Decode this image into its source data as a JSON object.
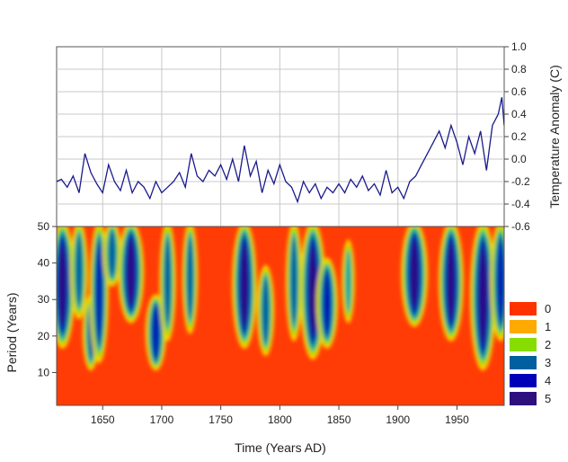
{
  "chart_data": [
    {
      "type": "line",
      "name": "temperature-anomaly",
      "ylabel": "Temperature Anomaly (C)",
      "xlim": [
        1611,
        1990
      ],
      "ylim": [
        -0.6,
        1.0
      ],
      "y_ticks": [
        "1.0",
        "0.8",
        "0.6",
        "0.4",
        "0.2",
        "0.0",
        "-0.2",
        "-0.4",
        "-0.6"
      ],
      "y_axis_side": "right",
      "grid": true,
      "color": "#1a1a8c",
      "x": [
        1611,
        1615,
        1620,
        1625,
        1630,
        1635,
        1640,
        1645,
        1650,
        1655,
        1660,
        1665,
        1670,
        1675,
        1680,
        1685,
        1690,
        1695,
        1700,
        1705,
        1710,
        1715,
        1720,
        1725,
        1730,
        1735,
        1740,
        1745,
        1750,
        1755,
        1760,
        1765,
        1770,
        1775,
        1780,
        1785,
        1790,
        1795,
        1800,
        1805,
        1810,
        1815,
        1820,
        1825,
        1830,
        1835,
        1840,
        1845,
        1850,
        1855,
        1860,
        1865,
        1870,
        1875,
        1880,
        1885,
        1890,
        1895,
        1900,
        1905,
        1910,
        1915,
        1920,
        1925,
        1930,
        1935,
        1940,
        1945,
        1950,
        1955,
        1960,
        1965,
        1970,
        1975,
        1980,
        1985,
        1988,
        1990
      ],
      "values": [
        -0.2,
        -0.18,
        -0.25,
        -0.15,
        -0.3,
        0.05,
        -0.12,
        -0.22,
        -0.3,
        -0.05,
        -0.2,
        -0.28,
        -0.1,
        -0.3,
        -0.2,
        -0.25,
        -0.35,
        -0.2,
        -0.3,
        -0.25,
        -0.2,
        -0.12,
        -0.25,
        0.05,
        -0.15,
        -0.2,
        -0.1,
        -0.15,
        -0.05,
        -0.18,
        0.0,
        -0.2,
        0.12,
        -0.15,
        -0.02,
        -0.3,
        -0.1,
        -0.22,
        -0.05,
        -0.2,
        -0.25,
        -0.38,
        -0.2,
        -0.3,
        -0.22,
        -0.35,
        -0.25,
        -0.3,
        -0.22,
        -0.3,
        -0.18,
        -0.25,
        -0.15,
        -0.28,
        -0.22,
        -0.32,
        -0.1,
        -0.3,
        -0.25,
        -0.35,
        -0.2,
        -0.15,
        -0.05,
        0.05,
        0.15,
        0.25,
        0.1,
        0.3,
        0.15,
        -0.05,
        0.2,
        0.05,
        0.25,
        -0.1,
        0.3,
        0.4,
        0.55,
        0.3
      ]
    },
    {
      "type": "heatmap",
      "name": "wavelet-power",
      "title": "",
      "xlabel": "Time (Years AD)",
      "ylabel": "Period (Years)",
      "xlim": [
        1611,
        1990
      ],
      "ylim": [
        1,
        50
      ],
      "x_ticks": [
        "1650",
        "1700",
        "1750",
        "1800",
        "1850",
        "1900",
        "1950"
      ],
      "y_ticks": [
        "50",
        "40",
        "30",
        "20",
        "10"
      ],
      "legend": [
        {
          "label": "0",
          "color": "#ff3300"
        },
        {
          "label": "1",
          "color": "#ffaa00"
        },
        {
          "label": "2",
          "color": "#88dd00"
        },
        {
          "label": "3",
          "color": "#005f9e"
        },
        {
          "label": "4",
          "color": "#0000b8"
        },
        {
          "label": "5",
          "color": "#2e0f7e"
        }
      ],
      "legend_position": "bottom-right",
      "power_blobs": [
        {
          "x": 1616,
          "period_top": 50,
          "period_bottom": 18,
          "level": 4.6
        },
        {
          "x": 1630,
          "period_top": 50,
          "period_bottom": 26,
          "level": 2.8
        },
        {
          "x": 1640,
          "period_top": 30,
          "period_bottom": 12,
          "level": 2.6
        },
        {
          "x": 1647,
          "period_top": 50,
          "period_bottom": 14,
          "level": 3.2
        },
        {
          "x": 1658,
          "period_top": 50,
          "period_bottom": 35,
          "level": 3.0
        },
        {
          "x": 1674,
          "period_top": 50,
          "period_bottom": 25,
          "level": 4.8
        },
        {
          "x": 1695,
          "period_top": 30,
          "period_bottom": 12,
          "level": 3.6
        },
        {
          "x": 1705,
          "period_top": 50,
          "period_bottom": 20,
          "level": 2.6
        },
        {
          "x": 1724,
          "period_top": 50,
          "period_bottom": 22,
          "level": 2.4
        },
        {
          "x": 1770,
          "period_top": 50,
          "period_bottom": 18,
          "level": 4.5
        },
        {
          "x": 1788,
          "period_top": 38,
          "period_bottom": 16,
          "level": 2.8
        },
        {
          "x": 1812,
          "period_top": 50,
          "period_bottom": 20,
          "level": 2.6
        },
        {
          "x": 1828,
          "period_top": 50,
          "period_bottom": 15,
          "level": 4.8
        },
        {
          "x": 1840,
          "period_top": 40,
          "period_bottom": 18,
          "level": 3.8
        },
        {
          "x": 1858,
          "period_top": 45,
          "period_bottom": 25,
          "level": 1.8
        },
        {
          "x": 1914,
          "period_top": 50,
          "period_bottom": 24,
          "level": 5.0
        },
        {
          "x": 1945,
          "period_top": 50,
          "period_bottom": 20,
          "level": 4.6
        },
        {
          "x": 1972,
          "period_top": 50,
          "period_bottom": 12,
          "level": 4.8
        },
        {
          "x": 1987,
          "period_top": 50,
          "period_bottom": 20,
          "level": 3.6
        }
      ]
    }
  ]
}
